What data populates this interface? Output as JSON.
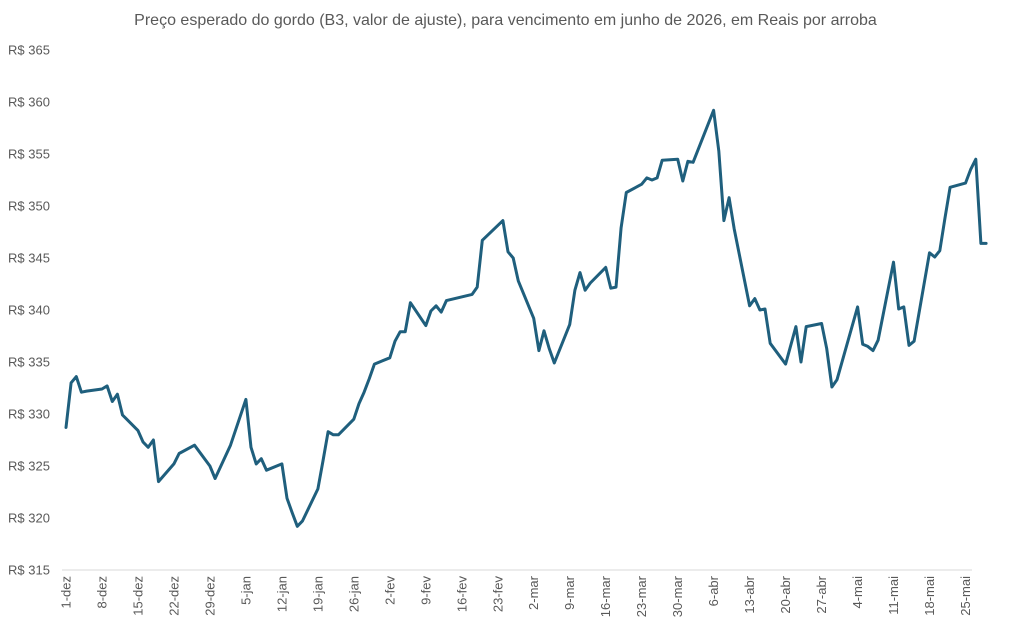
{
  "chart_data": {
    "type": "line",
    "title": "Preço esperado do gordo (B3, valor de ajuste), para vencimento em junho de 2026, em Reais por arroba",
    "xlabel": "",
    "ylabel": "",
    "ylim": [
      315,
      365
    ],
    "yticks": [
      "R$ 315",
      "R$ 320",
      "R$ 325",
      "R$ 330",
      "R$ 335",
      "R$ 340",
      "R$ 345",
      "R$ 350",
      "R$ 355",
      "R$ 360",
      "R$ 365"
    ],
    "xticks": [
      "1-dez",
      "8-dez",
      "15-dez",
      "22-dez",
      "29-dez",
      "5-jan",
      "12-jan",
      "19-jan",
      "26-jan",
      "2-fev",
      "9-fev",
      "16-fev",
      "23-fev",
      "2-mar",
      "9-mar",
      "16-mar",
      "23-mar",
      "30-mar",
      "6-abr",
      "13-abr",
      "20-abr",
      "27-abr",
      "4-mai",
      "11-mai",
      "18-mai",
      "25-mai"
    ],
    "grid": false,
    "colors": {
      "line": "#1f5f7d",
      "axis": "#d9d9d9"
    },
    "series": [
      {
        "x": [
          "2025-12-01",
          "2025-12-02",
          "2025-12-03",
          "2025-12-04",
          "2025-12-05",
          "2025-12-08",
          "2025-12-09",
          "2025-12-10",
          "2025-12-11",
          "2025-12-12",
          "2025-12-15",
          "2025-12-16",
          "2025-12-17",
          "2025-12-18",
          "2025-12-19",
          "2025-12-22",
          "2025-12-23",
          "2025-12-26",
          "2025-12-29",
          "2025-12-30",
          "2026-01-02",
          "2026-01-05",
          "2026-01-06",
          "2026-01-07",
          "2026-01-08",
          "2026-01-09",
          "2026-01-12",
          "2026-01-13",
          "2026-01-14",
          "2026-01-15",
          "2026-01-16",
          "2026-01-19",
          "2026-01-20",
          "2026-01-21",
          "2026-01-22",
          "2026-01-23",
          "2026-01-26",
          "2026-01-27",
          "2026-01-28",
          "2026-01-29",
          "2026-01-30",
          "2026-02-02",
          "2026-02-03",
          "2026-02-04",
          "2026-02-05",
          "2026-02-06",
          "2026-02-09",
          "2026-02-10",
          "2026-02-11",
          "2026-02-12",
          "2026-02-13",
          "2026-02-18",
          "2026-02-19",
          "2026-02-20",
          "2026-02-24",
          "2026-02-25",
          "2026-02-26",
          "2026-02-27",
          "2026-03-02",
          "2026-03-03",
          "2026-03-04",
          "2026-03-05",
          "2026-03-06",
          "2026-03-09",
          "2026-03-10",
          "2026-03-11",
          "2026-03-12",
          "2026-03-13",
          "2026-03-16",
          "2026-03-17",
          "2026-03-18",
          "2026-03-19",
          "2026-03-20",
          "2026-03-23",
          "2026-03-24",
          "2026-03-25",
          "2026-03-26",
          "2026-03-27",
          "2026-03-30",
          "2026-03-31",
          "2026-04-01",
          "2026-04-02",
          "2026-04-06",
          "2026-04-07",
          "2026-04-08",
          "2026-04-09",
          "2026-04-10",
          "2026-04-13",
          "2026-04-14",
          "2026-04-15",
          "2026-04-16",
          "2026-04-17",
          "2026-04-20",
          "2026-04-22",
          "2026-04-23",
          "2026-04-24",
          "2026-04-27",
          "2026-04-28",
          "2026-04-29",
          "2026-04-30",
          "2026-05-04",
          "2026-05-05",
          "2026-05-06",
          "2026-05-07",
          "2026-05-08",
          "2026-05-11",
          "2026-05-12",
          "2026-05-13",
          "2026-05-14",
          "2026-05-15",
          "2026-05-18",
          "2026-05-19",
          "2026-05-20",
          "2026-05-21",
          "2026-05-22",
          "2026-05-25",
          "2026-05-26",
          "2026-05-27",
          "2026-05-28",
          "2026-05-29"
        ],
        "values": [
          328.7,
          333.0,
          333.6,
          332.1,
          332.2,
          332.4,
          332.7,
          331.2,
          331.9,
          329.9,
          328.4,
          327.3,
          326.8,
          327.5,
          323.5,
          325.2,
          326.2,
          327.0,
          325.0,
          323.8,
          327.0,
          331.4,
          326.8,
          325.2,
          325.7,
          324.6,
          325.2,
          321.9,
          320.5,
          319.2,
          319.7,
          322.8,
          325.5,
          328.3,
          328.0,
          328.0,
          329.5,
          331.0,
          332.1,
          333.4,
          334.8,
          335.4,
          337.0,
          337.9,
          337.9,
          340.7,
          338.5,
          339.9,
          340.4,
          339.8,
          340.9,
          341.5,
          342.2,
          346.7,
          348.6,
          345.6,
          345.0,
          342.8,
          339.2,
          336.1,
          338.0,
          336.3,
          334.9,
          338.6,
          341.9,
          343.6,
          341.9,
          342.6,
          344.1,
          342.1,
          342.2,
          347.9,
          351.3,
          352.1,
          352.7,
          352.5,
          352.7,
          354.4,
          354.5,
          352.4,
          354.3,
          354.2,
          359.2,
          355.3,
          348.6,
          350.8,
          347.8,
          340.4,
          341.1,
          340.0,
          340.1,
          336.8,
          334.8,
          338.4,
          335.0,
          338.4,
          338.7,
          336.3,
          332.6,
          333.3,
          340.3,
          336.7,
          336.5,
          336.1,
          337.1,
          344.6,
          340.1,
          340.3,
          336.6,
          337.0,
          345.5,
          345.1,
          345.7,
          348.8,
          351.8,
          352.2,
          353.5,
          354.5,
          346.4,
          346.4
        ]
      }
    ]
  }
}
